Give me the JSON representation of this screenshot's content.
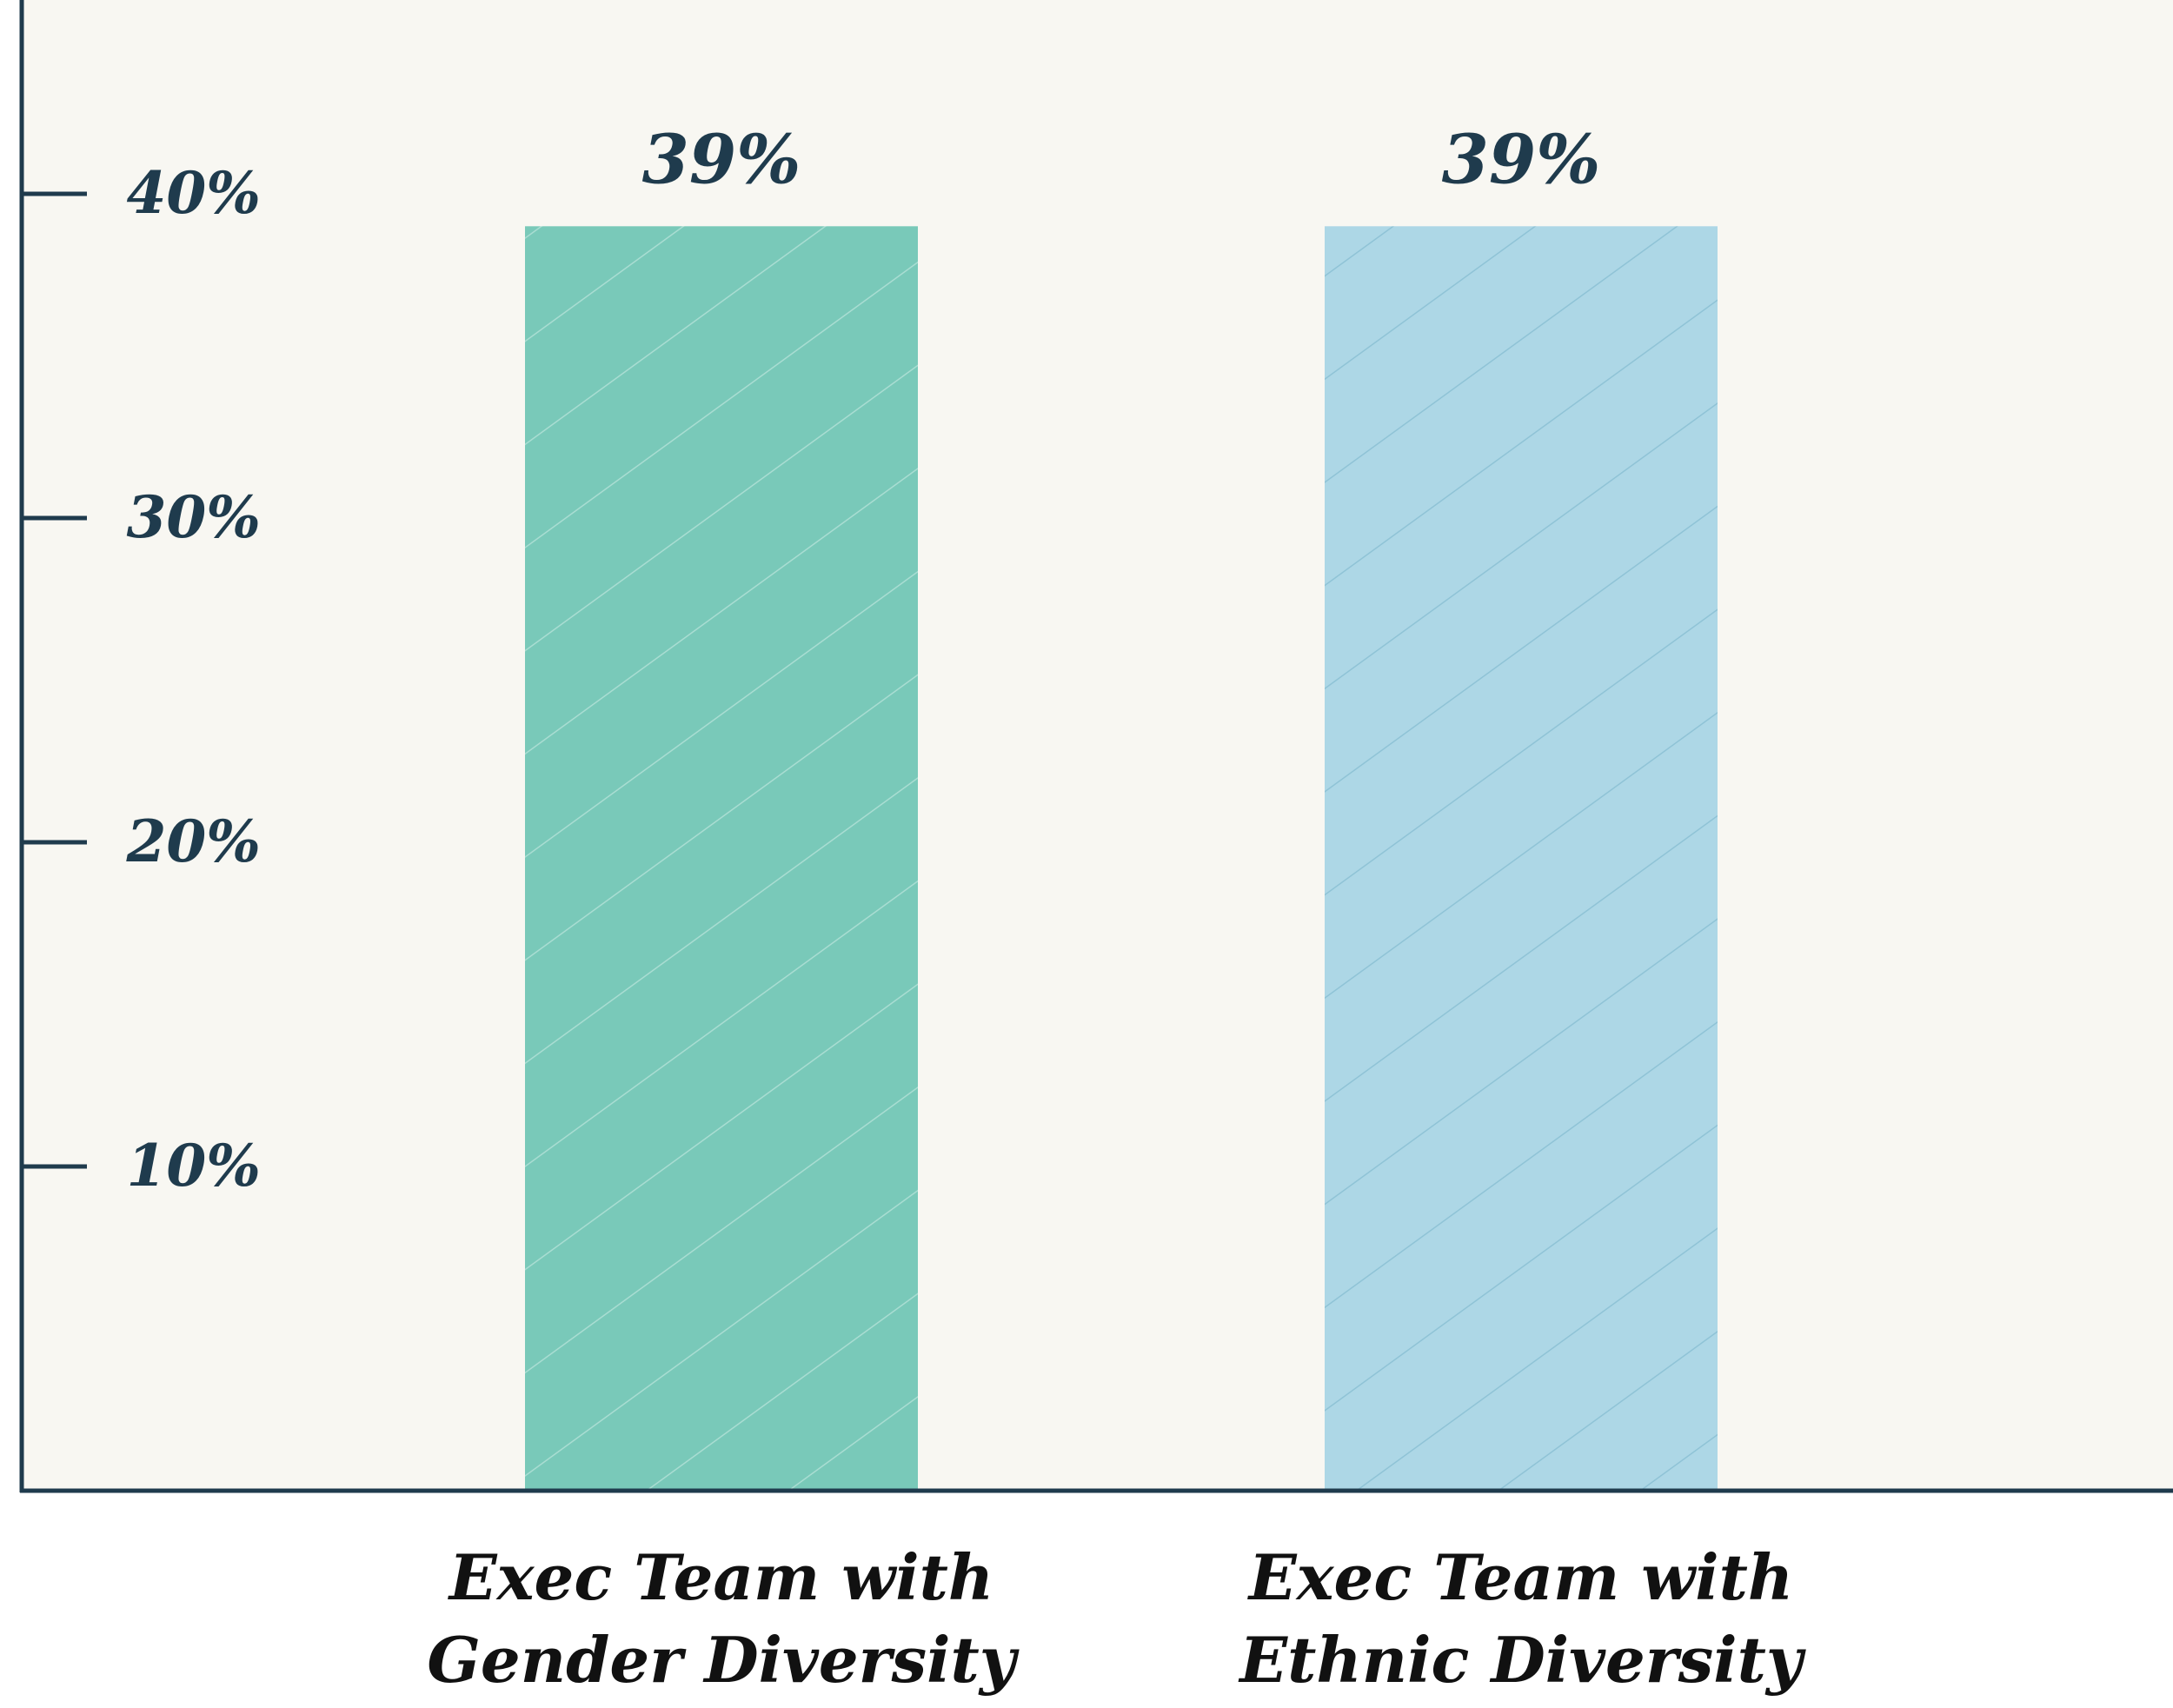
{
  "chart_data": {
    "type": "bar",
    "categories": [
      [
        "Exec Team with",
        "Gender Diversity"
      ],
      [
        "Exec Team with",
        "Ethnic Diversity"
      ]
    ],
    "values": [
      39,
      39
    ],
    "value_labels": [
      "39%",
      "39%"
    ],
    "title": "",
    "xlabel": "",
    "ylabel": "",
    "ylim": [
      0,
      46
    ],
    "yticks": [
      10,
      20,
      30,
      40
    ],
    "ytick_labels": [
      "10%",
      "20%",
      "30%",
      "40%"
    ],
    "grid": false,
    "legend": "none",
    "colors": {
      "background": "#f8f7f2",
      "axis": "#1f3b4d",
      "bars": [
        "#79c9b9",
        "#add7e6"
      ],
      "hatch": [
        "#a9ddd2",
        "#8fc3d6"
      ]
    }
  }
}
